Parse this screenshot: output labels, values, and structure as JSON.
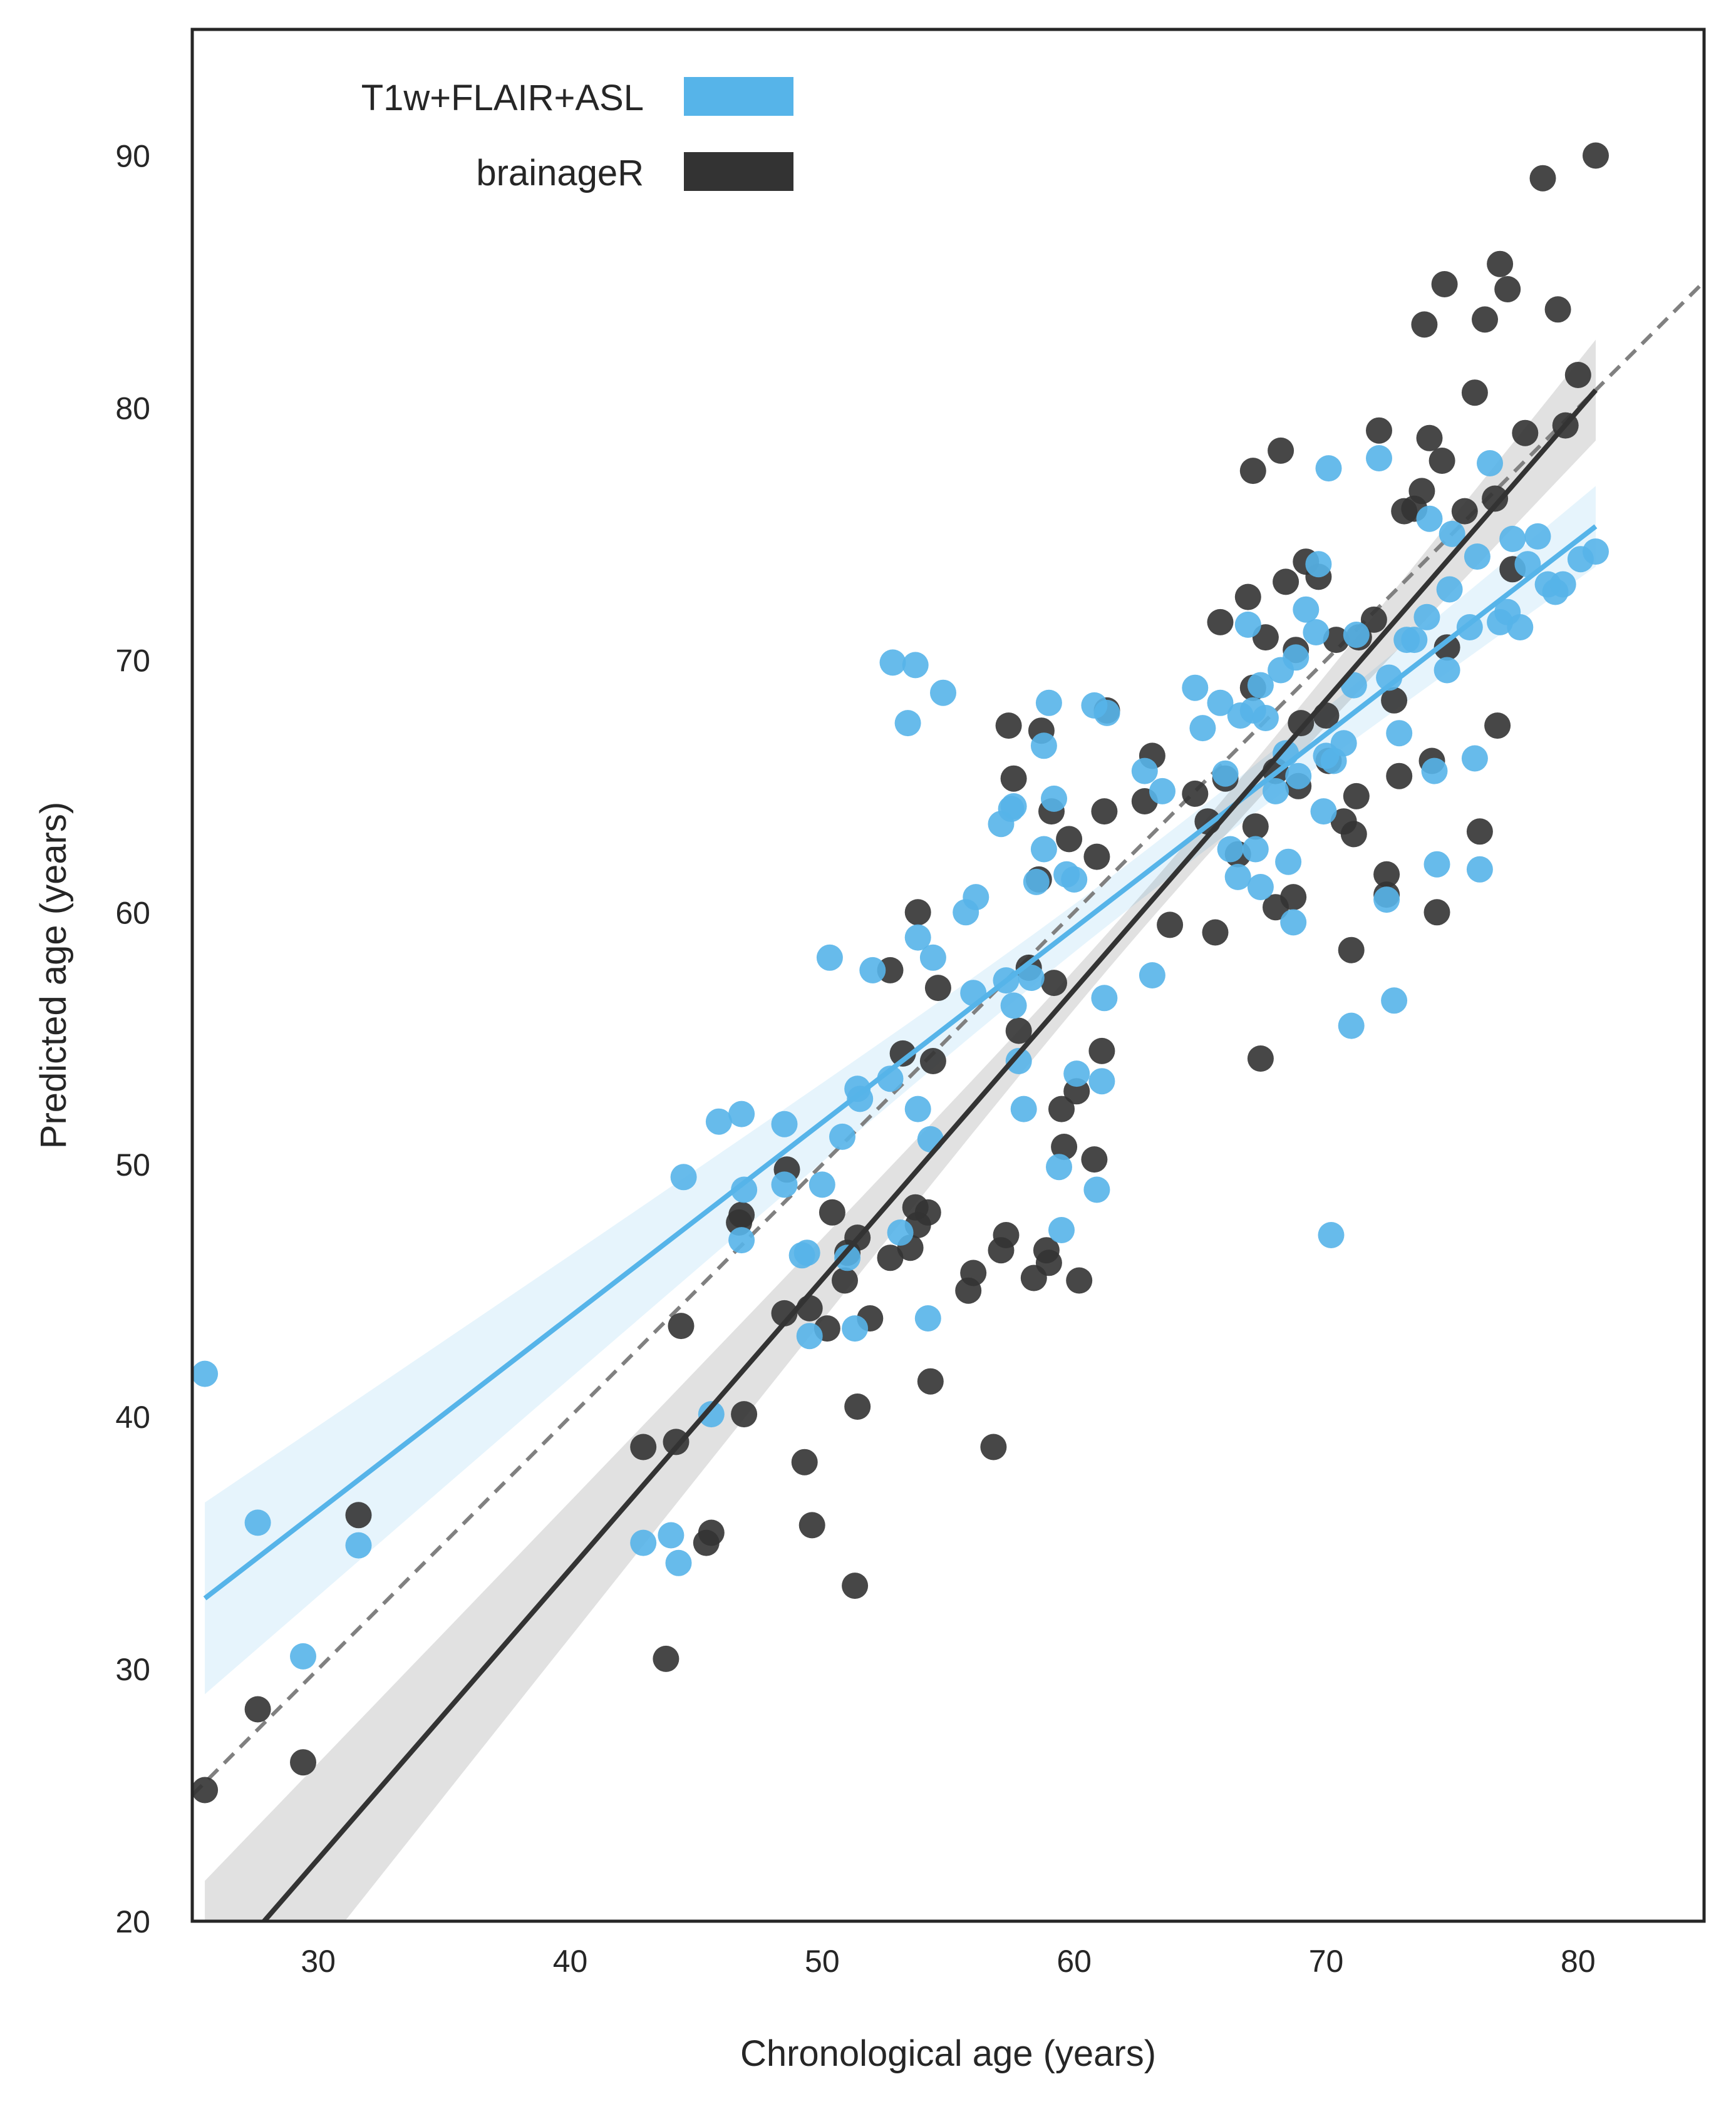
{
  "chart_data": {
    "type": "scatter",
    "xlabel": "Chronological age (years)",
    "ylabel": "Predicted age (years)",
    "xlim": [
      25,
      85
    ],
    "ylim": [
      20,
      95
    ],
    "xticks": [
      30,
      40,
      50,
      60,
      70,
      80
    ],
    "yticks": [
      20,
      30,
      40,
      50,
      60,
      70,
      80,
      90
    ],
    "grid": false,
    "legend_position": "top-left",
    "identity_line": {
      "style": "dashed",
      "color": "#808080",
      "from": [
        25,
        25
      ],
      "to": [
        85,
        85
      ]
    },
    "series": [
      {
        "name": "T1w+FLAIR+ASL",
        "color": "#56b4e9",
        "fit": {
          "x": [
            25.5,
            80.7
          ],
          "y": [
            32.8,
            75.3
          ],
          "ci_halfwidth": [
            3.8,
            1.6
          ],
          "ci_mid_halfwidth": 0.9,
          "ci_center_x": 63
        },
        "points": [
          [
            25.5,
            41.7
          ],
          [
            27.6,
            35.8
          ],
          [
            29.4,
            30.5
          ],
          [
            31.6,
            34.9
          ],
          [
            42.9,
            35.0
          ],
          [
            44.0,
            35.3
          ],
          [
            44.3,
            34.2
          ],
          [
            44.5,
            49.5
          ],
          [
            45.6,
            40.1
          ],
          [
            45.9,
            51.7
          ],
          [
            46.8,
            52.0
          ],
          [
            46.8,
            47.0
          ],
          [
            46.9,
            49.0
          ],
          [
            48.5,
            51.6
          ],
          [
            48.5,
            49.2
          ],
          [
            49.2,
            46.4
          ],
          [
            49.4,
            46.5
          ],
          [
            49.5,
            43.2
          ],
          [
            50.0,
            49.2
          ],
          [
            50.3,
            58.2
          ],
          [
            50.8,
            51.1
          ],
          [
            51.0,
            46.3
          ],
          [
            51.3,
            43.5
          ],
          [
            51.4,
            53.0
          ],
          [
            51.5,
            52.6
          ],
          [
            52.0,
            57.7
          ],
          [
            52.7,
            53.4
          ],
          [
            52.8,
            69.9
          ],
          [
            53.1,
            47.3
          ],
          [
            53.4,
            67.5
          ],
          [
            53.7,
            69.8
          ],
          [
            53.8,
            52.2
          ],
          [
            53.8,
            59.0
          ],
          [
            54.2,
            43.9
          ],
          [
            54.3,
            51.0
          ],
          [
            54.4,
            58.2
          ],
          [
            54.8,
            68.7
          ],
          [
            55.7,
            60.0
          ],
          [
            56.0,
            56.8
          ],
          [
            56.1,
            60.6
          ],
          [
            57.1,
            63.5
          ],
          [
            57.3,
            57.3
          ],
          [
            57.5,
            64.1
          ],
          [
            57.6,
            64.2
          ],
          [
            57.6,
            56.3
          ],
          [
            57.8,
            54.1
          ],
          [
            58.0,
            52.2
          ],
          [
            58.3,
            57.4
          ],
          [
            58.5,
            61.2
          ],
          [
            58.8,
            66.6
          ],
          [
            58.8,
            62.5
          ],
          [
            59.0,
            68.3
          ],
          [
            59.2,
            64.5
          ],
          [
            59.4,
            49.9
          ],
          [
            59.5,
            47.4
          ],
          [
            59.7,
            61.5
          ],
          [
            60.0,
            61.3
          ],
          [
            60.1,
            53.6
          ],
          [
            60.8,
            68.2
          ],
          [
            60.9,
            49.0
          ],
          [
            61.1,
            53.3
          ],
          [
            61.2,
            56.6
          ],
          [
            61.3,
            67.9
          ],
          [
            62.8,
            65.6
          ],
          [
            63.1,
            57.5
          ],
          [
            63.5,
            64.8
          ],
          [
            64.8,
            68.9
          ],
          [
            65.1,
            67.3
          ],
          [
            65.8,
            68.3
          ],
          [
            66.0,
            65.5
          ],
          [
            66.2,
            62.5
          ],
          [
            66.5,
            61.4
          ],
          [
            66.6,
            67.8
          ],
          [
            66.9,
            71.4
          ],
          [
            67.1,
            68.0
          ],
          [
            67.2,
            62.5
          ],
          [
            67.4,
            61.0
          ],
          [
            67.4,
            69.0
          ],
          [
            67.6,
            67.7
          ],
          [
            68.0,
            64.8
          ],
          [
            68.2,
            69.6
          ],
          [
            68.4,
            66.3
          ],
          [
            68.5,
            62.0
          ],
          [
            68.7,
            59.6
          ],
          [
            68.8,
            70.1
          ],
          [
            68.9,
            65.4
          ],
          [
            69.2,
            72.0
          ],
          [
            69.6,
            71.1
          ],
          [
            69.7,
            73.8
          ],
          [
            69.9,
            64.0
          ],
          [
            70.0,
            66.2
          ],
          [
            70.1,
            77.6
          ],
          [
            70.2,
            47.2
          ],
          [
            70.3,
            66.0
          ],
          [
            70.7,
            66.7
          ],
          [
            71.0,
            55.5
          ],
          [
            71.1,
            69.0
          ],
          [
            71.2,
            71.0
          ],
          [
            72.1,
            78.0
          ],
          [
            72.4,
            60.5
          ],
          [
            72.5,
            69.3
          ],
          [
            72.7,
            56.5
          ],
          [
            72.9,
            67.1
          ],
          [
            73.2,
            70.8
          ],
          [
            73.5,
            70.8
          ],
          [
            74.0,
            71.7
          ],
          [
            74.1,
            75.6
          ],
          [
            74.3,
            65.6
          ],
          [
            74.4,
            61.9
          ],
          [
            74.8,
            69.6
          ],
          [
            74.9,
            72.8
          ],
          [
            75.0,
            75.0
          ],
          [
            75.7,
            71.3
          ],
          [
            75.9,
            66.1
          ],
          [
            76.0,
            74.1
          ],
          [
            76.1,
            61.7
          ],
          [
            76.5,
            77.8
          ],
          [
            76.9,
            71.5
          ],
          [
            77.2,
            71.9
          ],
          [
            77.4,
            74.8
          ],
          [
            77.7,
            71.3
          ],
          [
            78.0,
            73.8
          ],
          [
            78.4,
            74.9
          ],
          [
            78.8,
            73.0
          ],
          [
            79.1,
            72.7
          ],
          [
            79.4,
            73.0
          ],
          [
            80.1,
            74.0
          ],
          [
            80.7,
            74.3
          ]
        ]
      },
      {
        "name": "brainageR",
        "color": "#333333",
        "fit": {
          "x": [
            25.5,
            80.7
          ],
          "y": [
            17.3,
            80.7
          ],
          "ci_halfwidth": [
            4.3,
            2.0
          ],
          "ci_mid_halfwidth": 0.7,
          "ci_center_x": 63
        },
        "points": [
          [
            25.5,
            25.2
          ],
          [
            27.6,
            28.4
          ],
          [
            29.4,
            26.3
          ],
          [
            31.6,
            36.1
          ],
          [
            42.9,
            38.8
          ],
          [
            43.8,
            30.4
          ],
          [
            44.2,
            39.0
          ],
          [
            44.4,
            43.6
          ],
          [
            45.4,
            35.0
          ],
          [
            45.6,
            35.4
          ],
          [
            46.7,
            47.7
          ],
          [
            46.8,
            48.0
          ],
          [
            46.9,
            40.1
          ],
          [
            48.5,
            44.1
          ],
          [
            48.6,
            49.8
          ],
          [
            49.3,
            38.2
          ],
          [
            49.5,
            44.3
          ],
          [
            49.6,
            35.7
          ],
          [
            50.2,
            43.5
          ],
          [
            50.4,
            48.1
          ],
          [
            50.9,
            45.4
          ],
          [
            51.0,
            46.5
          ],
          [
            51.3,
            33.3
          ],
          [
            51.4,
            40.4
          ],
          [
            51.4,
            47.1
          ],
          [
            51.9,
            43.9
          ],
          [
            52.7,
            57.7
          ],
          [
            52.7,
            46.3
          ],
          [
            53.2,
            54.4
          ],
          [
            53.5,
            46.7
          ],
          [
            53.7,
            48.3
          ],
          [
            53.8,
            47.6
          ],
          [
            53.8,
            60.0
          ],
          [
            54.2,
            48.1
          ],
          [
            54.3,
            41.4
          ],
          [
            54.4,
            54.1
          ],
          [
            54.6,
            57.0
          ],
          [
            55.8,
            45.0
          ],
          [
            56.0,
            45.7
          ],
          [
            56.8,
            38.8
          ],
          [
            57.1,
            46.6
          ],
          [
            57.3,
            47.2
          ],
          [
            57.4,
            67.4
          ],
          [
            57.6,
            65.3
          ],
          [
            57.8,
            55.3
          ],
          [
            58.2,
            57.8
          ],
          [
            58.4,
            45.5
          ],
          [
            58.6,
            61.3
          ],
          [
            58.7,
            67.2
          ],
          [
            58.9,
            46.6
          ],
          [
            59.0,
            46.1
          ],
          [
            59.1,
            64.0
          ],
          [
            59.2,
            57.2
          ],
          [
            59.5,
            52.2
          ],
          [
            59.6,
            50.7
          ],
          [
            59.8,
            62.9
          ],
          [
            60.1,
            52.9
          ],
          [
            60.2,
            45.4
          ],
          [
            60.8,
            50.2
          ],
          [
            60.9,
            62.2
          ],
          [
            61.1,
            54.5
          ],
          [
            61.2,
            64.0
          ],
          [
            61.3,
            68.0
          ],
          [
            62.8,
            64.4
          ],
          [
            63.1,
            66.2
          ],
          [
            63.8,
            59.5
          ],
          [
            64.8,
            64.7
          ],
          [
            65.3,
            63.6
          ],
          [
            65.6,
            59.2
          ],
          [
            65.8,
            71.5
          ],
          [
            66.0,
            65.3
          ],
          [
            66.5,
            62.3
          ],
          [
            66.9,
            72.5
          ],
          [
            67.1,
            77.5
          ],
          [
            67.1,
            68.9
          ],
          [
            67.2,
            63.4
          ],
          [
            67.4,
            54.2
          ],
          [
            67.6,
            70.9
          ],
          [
            68.0,
            65.6
          ],
          [
            68.0,
            60.2
          ],
          [
            68.2,
            78.3
          ],
          [
            68.4,
            73.1
          ],
          [
            68.7,
            60.6
          ],
          [
            68.8,
            70.4
          ],
          [
            68.9,
            65.0
          ],
          [
            69.0,
            67.5
          ],
          [
            69.2,
            73.9
          ],
          [
            69.7,
            73.3
          ],
          [
            70.0,
            67.8
          ],
          [
            70.1,
            66.0
          ],
          [
            70.4,
            70.8
          ],
          [
            70.7,
            63.6
          ],
          [
            71.0,
            58.5
          ],
          [
            71.1,
            63.1
          ],
          [
            71.2,
            64.6
          ],
          [
            71.3,
            70.9
          ],
          [
            71.9,
            71.6
          ],
          [
            72.1,
            79.1
          ],
          [
            72.4,
            61.5
          ],
          [
            72.4,
            60.7
          ],
          [
            72.7,
            68.4
          ],
          [
            72.9,
            65.4
          ],
          [
            73.1,
            75.9
          ],
          [
            73.5,
            76.0
          ],
          [
            73.8,
            76.7
          ],
          [
            73.9,
            83.3
          ],
          [
            74.1,
            78.8
          ],
          [
            74.2,
            66.0
          ],
          [
            74.4,
            60.0
          ],
          [
            74.6,
            77.9
          ],
          [
            74.7,
            84.9
          ],
          [
            74.8,
            70.5
          ],
          [
            75.5,
            75.9
          ],
          [
            75.9,
            80.6
          ],
          [
            76.1,
            63.2
          ],
          [
            76.3,
            83.5
          ],
          [
            76.7,
            76.4
          ],
          [
            76.8,
            67.4
          ],
          [
            76.9,
            85.7
          ],
          [
            77.2,
            84.7
          ],
          [
            77.4,
            73.6
          ],
          [
            77.9,
            79.0
          ],
          [
            78.6,
            89.1
          ],
          [
            79.2,
            83.9
          ],
          [
            79.5,
            79.3
          ],
          [
            80.0,
            81.3
          ],
          [
            80.7,
            90.0
          ]
        ]
      }
    ]
  }
}
